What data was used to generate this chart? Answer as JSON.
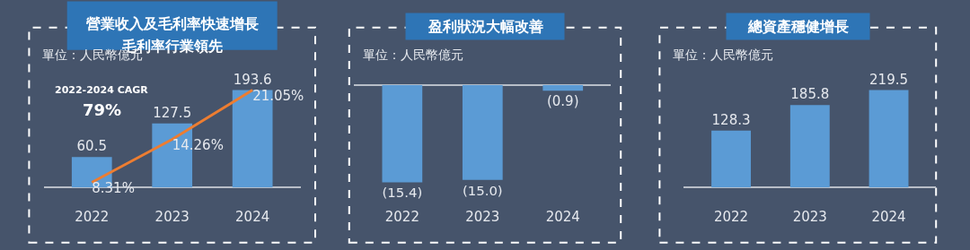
{
  "chart_data": [
    {
      "type": "bar",
      "title": "營業收入及毛利率快速增長",
      "subtitle": "毛利率行業領先",
      "categories": [
        "2022",
        "2023",
        "2024"
      ],
      "data_labels": true,
      "tick_labels": "x",
      "series": [
        {
          "type": "bar",
          "color": "#5b9bd5",
          "values": [
            60.5,
            127.5,
            193.6
          ]
        },
        {
          "type": "line",
          "axis": "y2",
          "color": "#ed7d31",
          "values": [
            8.31,
            14.26,
            21.05
          ],
          "value_labels": [
            "8.31%",
            "14.26%",
            "21.05%"
          ]
        }
      ],
      "annotations": [
        "單位：人民幣億元",
        "2022-2024 CAGR",
        "79%"
      ]
    },
    {
      "type": "bar",
      "title": "盈利狀況大幅改善",
      "categories": [
        "2022",
        "2023",
        "2024"
      ],
      "tick_labels": "x",
      "series": [
        {
          "color": "#5b9bd5",
          "values": [
            -15.4,
            -15.0,
            -0.9
          ],
          "value_labels": [
            "(15.4)",
            "(15.0)",
            "(0.9)"
          ]
        }
      ],
      "annotations": [
        "單位：人民幣億元"
      ]
    },
    {
      "type": "bar",
      "title": "總資產穩健增長",
      "categories": [
        "2022",
        "2023",
        "2024"
      ],
      "data_labels": true,
      "tick_labels": "x",
      "series": [
        {
          "color": "#5b9bd5",
          "values": [
            128.3,
            185.8,
            219.5
          ]
        }
      ],
      "annotations": [
        "單位：人民幣億元"
      ]
    }
  ]
}
